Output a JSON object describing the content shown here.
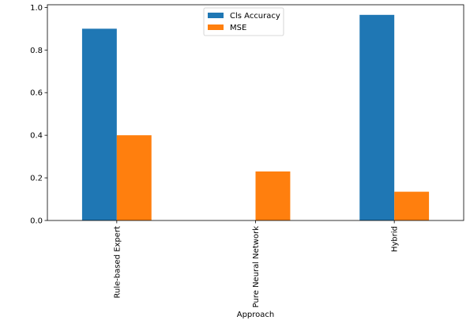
{
  "chart_data": {
    "type": "bar",
    "categories": [
      "Rule-based Expert",
      "Pure Neural Network",
      "Hybrid"
    ],
    "series": [
      {
        "name": "Cls Accuracy",
        "values": [
          0.9,
          0.0,
          0.965
        ],
        "color": "#1f77b4"
      },
      {
        "name": "MSE",
        "values": [
          0.4,
          0.23,
          0.135
        ],
        "color": "#ff7f0e"
      }
    ],
    "title": "",
    "xlabel": "Approach",
    "ylabel": "",
    "ylim": [
      0,
      1.0125
    ],
    "yticks": [
      0.0,
      0.2,
      0.4,
      0.6,
      0.8,
      1.0
    ],
    "ytick_labels": [
      "0.0",
      "0.2",
      "0.4",
      "0.6",
      "0.8",
      "1.0"
    ],
    "grid": false,
    "legend_position": "top-center"
  }
}
